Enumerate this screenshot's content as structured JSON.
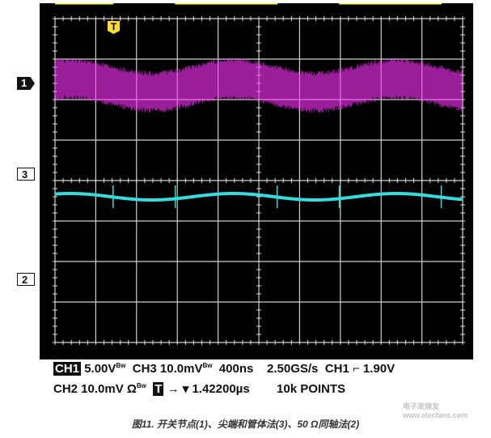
{
  "chart_data": {
    "type": "line",
    "title": "",
    "x_divisions": 10,
    "y_divisions": 8,
    "x_unit_per_div": "400ns",
    "grid": true,
    "series": [
      {
        "name": "1",
        "color": "#ffff33",
        "shape": "square",
        "low_div": 4.4,
        "high_div": 5.2,
        "rising_edges_us": [
          0.57,
          2.18,
          3.79
        ],
        "falling_edges_us": [
          1.18,
          2.79
        ]
      },
      {
        "name": "3",
        "color": "#ff33ff",
        "shape": "noisy-sine",
        "center_div": 2.35,
        "band_div": 0.8,
        "period_us": 1.6
      },
      {
        "name": "2",
        "color": "#33dddd",
        "shape": "sine-with-spikes",
        "center_div": -0.4,
        "amplitude_div": 0.08,
        "period_us": 1.6
      }
    ],
    "trigger_marker": "T"
  },
  "markers": {
    "ch1": "1",
    "ch3": "3",
    "ch2": "2",
    "trigger": "T"
  },
  "readout": {
    "line1": {
      "ch1_badge": "CH1",
      "ch1_scale": "5.00V",
      "bw1": "Bw",
      "ch3": "CH3 10.0mV",
      "bw3": "Bw",
      "timebase": "400ns",
      "sample_rate": "2.50GS/s",
      "trig_src": "CH1",
      "trig_slope": "⌐",
      "trig_level": "1.90V"
    },
    "line2": {
      "ch2": "CH2 10.0mV Ω",
      "bw2": "Bw",
      "trig_badge": "T",
      "trig_pos": "→ ▾ 1.42200µs",
      "points": "10k POINTS"
    }
  },
  "caption": "图11. 开关节点(1)、尖端和管体法(3)、50 Ω同轴法(2)",
  "watermark": "电子发烧友 www.elecfans.com"
}
